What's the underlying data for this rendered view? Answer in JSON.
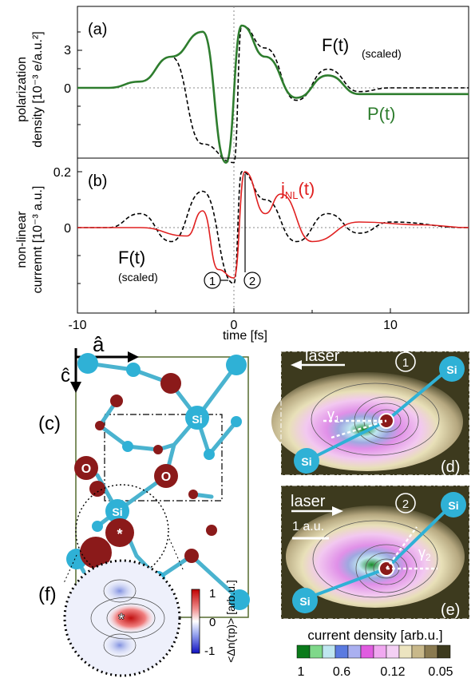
{
  "colors": {
    "field_dashed": "#000000",
    "polarization": "#2e7d2e",
    "current": "#e02020",
    "si_atom": "#2fb1d6",
    "o_atom": "#8b1a1a",
    "bond": "#4ab3cf",
    "map_bg": "#3d3a1e",
    "map_inner": "#e8a0e8"
  },
  "panel_a": {
    "label": "(a)",
    "ylabel_line1": "polarization",
    "ylabel_line2": "density [10⁻³ e/a.u.²]",
    "yticks": [
      "3",
      "0"
    ],
    "legend_field": "F(t)",
    "legend_field_note": "(scaled)",
    "legend_pol": "P(t)"
  },
  "panel_b": {
    "label": "(b)",
    "ylabel_line1": "non-linear",
    "ylabel_line2": "currennt [10⁻³ a.u.]",
    "yticks": [
      "0.2",
      "0"
    ],
    "legend_current": "j",
    "legend_current_sub": "NL",
    "legend_current_arg": "(t)",
    "legend_field": "F(t)",
    "legend_field_note": "(scaled)",
    "marker1": "1",
    "marker2": "2"
  },
  "time_axis": {
    "xlabel": "time [fs]",
    "xticks": [
      "-10",
      "0",
      "10"
    ]
  },
  "chart_data": [
    {
      "type": "line",
      "title": "",
      "xlabel": "time [fs]",
      "ylabel": "polarization density [10^-3 e/a.u.^2]",
      "xlim": [
        -10,
        15
      ],
      "series": [
        {
          "name": "F(t)",
          "style": "dashed",
          "x": [
            -10,
            -8,
            -6,
            -4,
            -2,
            0,
            0.5,
            2,
            4,
            6,
            8,
            10,
            15
          ],
          "y": [
            0,
            0,
            0.5,
            2.5,
            -4.5,
            -6,
            5,
            3.2,
            -1,
            1.5,
            -0.3,
            0,
            0
          ]
        },
        {
          "name": "P(t)",
          "style": "solid",
          "x": [
            -10,
            -8,
            -6,
            -4,
            -2,
            -0.5,
            0.5,
            2,
            4,
            6,
            8,
            10,
            15
          ],
          "y": [
            0,
            0,
            0.5,
            2.5,
            4.5,
            -6,
            5,
            2.5,
            -0.8,
            1,
            -0.5,
            -0.5,
            -0.5
          ]
        }
      ]
    },
    {
      "type": "line",
      "title": "",
      "xlabel": "time [fs]",
      "ylabel": "non-linear current [10^-3 a.u.]",
      "xlim": [
        -10,
        15
      ],
      "series": [
        {
          "name": "F(t)",
          "style": "dashed",
          "x": [
            -10,
            -8,
            -6,
            -4,
            -2,
            0,
            0.5,
            2,
            4,
            6,
            8,
            10,
            15
          ],
          "y": [
            0,
            0,
            0.05,
            -0.05,
            0.13,
            -0.2,
            0.2,
            0.1,
            -0.05,
            0.05,
            -0.02,
            0.02,
            0
          ]
        },
        {
          "name": "j_NL(t)",
          "style": "solid",
          "x": [
            -10,
            -6,
            -3,
            -2,
            -1,
            0,
            0.7,
            2,
            3,
            5,
            8,
            12,
            15
          ],
          "y": [
            0,
            0,
            -0.03,
            0.06,
            -0.15,
            -0.18,
            0.2,
            0.05,
            0.12,
            -0.05,
            0.02,
            0.01,
            0
          ]
        }
      ]
    }
  ],
  "panel_c": {
    "label": "(c)",
    "axis_a": "â",
    "axis_c": "ĉ",
    "atom_si_label": "Si",
    "atom_o_label": "O",
    "star": "*"
  },
  "panel_f": {
    "label": "(f)",
    "colorbar_ticks": [
      "1",
      "0",
      "-1"
    ],
    "colorbar_label": "<Δn(τp)> [arb.u.]",
    "star": "*"
  },
  "panel_d": {
    "label": "(d)",
    "laser": "laser",
    "marker": "1",
    "angle": "γ",
    "angle_sub": "1",
    "si_top": "Si",
    "si_bottom": "Si"
  },
  "panel_e": {
    "label": "(e)",
    "laser": "laser",
    "marker": "2",
    "scale": "1 a.u.",
    "angle": "γ",
    "angle_sub": "2",
    "si_top": "Si",
    "si_bottom": "Si"
  },
  "colorbar_current": {
    "label": "current density [arb.u.]",
    "ticks": [
      "1",
      "0.6",
      "0.12",
      "0.05"
    ]
  }
}
